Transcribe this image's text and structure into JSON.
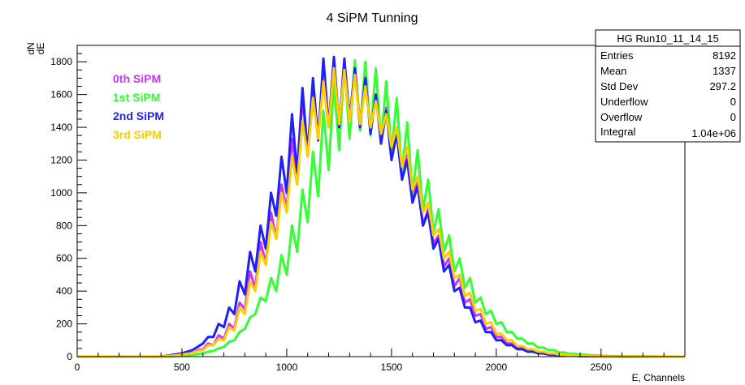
{
  "chart_data": {
    "type": "line",
    "title": "4 SiPM Tunning",
    "xlabel": "E, Channels",
    "ylabel_num": "dN",
    "ylabel_den": "dE",
    "xlim": [
      0,
      2900
    ],
    "ylim": [
      0,
      1900
    ],
    "x_ticks": [
      0,
      500,
      1000,
      1500,
      2000,
      2500
    ],
    "y_ticks": [
      0,
      200,
      400,
      600,
      800,
      1000,
      1200,
      1400,
      1600,
      1800
    ],
    "grid": false,
    "legend_position": "top-left",
    "x": [
      500,
      525,
      550,
      575,
      600,
      625,
      650,
      675,
      700,
      725,
      750,
      775,
      800,
      825,
      850,
      875,
      900,
      925,
      950,
      975,
      1000,
      1025,
      1050,
      1075,
      1100,
      1125,
      1150,
      1175,
      1200,
      1225,
      1250,
      1275,
      1300,
      1325,
      1350,
      1375,
      1400,
      1425,
      1450,
      1475,
      1500,
      1525,
      1550,
      1575,
      1600,
      1625,
      1650,
      1675,
      1700,
      1725,
      1750,
      1775,
      1800,
      1825,
      1850,
      1875,
      1900,
      1925,
      1950,
      1975,
      2000,
      2025,
      2050,
      2075,
      2100,
      2125,
      2150,
      2175,
      2200,
      2225,
      2250,
      2275,
      2300,
      2325,
      2350,
      2375,
      2400,
      2425,
      2450,
      2475,
      2500,
      2525,
      2550,
      2575,
      2600
    ],
    "series": [
      {
        "name": "0th SiPM",
        "color": "#cc33ff",
        "values": [
          10,
          20,
          20,
          40,
          45,
          80,
          70,
          130,
          110,
          200,
          170,
          330,
          290,
          520,
          420,
          700,
          570,
          880,
          720,
          1050,
          900,
          1330,
          1100,
          1580,
          1260,
          1560,
          1380,
          1680,
          1400,
          1760,
          1420,
          1790,
          1460,
          1740,
          1430,
          1680,
          1400,
          1580,
          1350,
          1520,
          1240,
          1400,
          1100,
          1230,
          960,
          1070,
          800,
          900,
          690,
          740,
          550,
          600,
          430,
          480,
          330,
          350,
          250,
          260,
          170,
          180,
          120,
          120,
          80,
          80,
          55,
          55,
          35,
          35,
          25,
          25,
          15,
          15,
          10,
          10,
          8,
          8,
          5,
          5,
          4,
          4,
          3,
          3,
          2,
          2,
          1
        ]
      },
      {
        "name": "1st SiPM",
        "color": "#33ff33",
        "values": [
          5,
          8,
          12,
          15,
          20,
          30,
          35,
          50,
          60,
          90,
          100,
          150,
          170,
          240,
          260,
          360,
          340,
          480,
          400,
          620,
          500,
          800,
          640,
          1020,
          820,
          1250,
          980,
          1500,
          1140,
          1680,
          1260,
          1790,
          1330,
          1810,
          1380,
          1800,
          1350,
          1760,
          1310,
          1680,
          1240,
          1580,
          1120,
          1430,
          1000,
          1260,
          890,
          1080,
          760,
          900,
          640,
          740,
          520,
          600,
          420,
          480,
          330,
          360,
          260,
          280,
          200,
          210,
          150,
          150,
          110,
          110,
          80,
          80,
          55,
          55,
          40,
          40,
          25,
          25,
          18,
          18,
          12,
          12,
          8,
          8,
          5,
          5,
          3,
          3,
          2
        ]
      },
      {
        "name": "2nd SiPM",
        "color": "#1f1fff",
        "values": [
          20,
          30,
          40,
          60,
          80,
          120,
          120,
          200,
          180,
          300,
          260,
          460,
          380,
          640,
          520,
          800,
          660,
          1000,
          860,
          1220,
          1000,
          1480,
          1120,
          1640,
          1240,
          1700,
          1320,
          1820,
          1400,
          1830,
          1400,
          1820,
          1440,
          1760,
          1400,
          1700,
          1360,
          1600,
          1300,
          1500,
          1200,
          1360,
          1080,
          1200,
          940,
          1040,
          800,
          880,
          660,
          720,
          520,
          560,
          400,
          420,
          300,
          300,
          210,
          220,
          150,
          150,
          100,
          100,
          70,
          70,
          45,
          45,
          30,
          30,
          20,
          20,
          12,
          12,
          8,
          8,
          5,
          5,
          3,
          3,
          2,
          2,
          1,
          1,
          1,
          1,
          0
        ]
      },
      {
        "name": "3rd SiPM",
        "color": "#ffcc00",
        "values": [
          12,
          18,
          20,
          35,
          40,
          70,
          70,
          110,
          100,
          180,
          160,
          300,
          260,
          460,
          400,
          640,
          560,
          820,
          720,
          1000,
          880,
          1220,
          1050,
          1440,
          1220,
          1580,
          1330,
          1680,
          1400,
          1760,
          1420,
          1750,
          1430,
          1720,
          1420,
          1650,
          1400,
          1560,
          1360,
          1480,
          1280,
          1400,
          1160,
          1280,
          1020,
          1100,
          880,
          940,
          740,
          780,
          600,
          640,
          480,
          500,
          370,
          390,
          280,
          290,
          200,
          210,
          140,
          140,
          100,
          100,
          65,
          65,
          45,
          45,
          30,
          30,
          20,
          20,
          12,
          12,
          8,
          8,
          5,
          5,
          3,
          3,
          2,
          2,
          1,
          1,
          1
        ]
      }
    ],
    "stats_box": {
      "title": "HG Run10_11_14_15",
      "rows": [
        {
          "label": "Entries",
          "value": "8192"
        },
        {
          "label": "Mean",
          "value": "1337"
        },
        {
          "label": "Std Dev",
          "value": "297.2"
        },
        {
          "label": "Underflow",
          "value": "0"
        },
        {
          "label": "Overflow",
          "value": "0"
        },
        {
          "label": "Integral",
          "value": "1.04e+06"
        }
      ]
    }
  }
}
